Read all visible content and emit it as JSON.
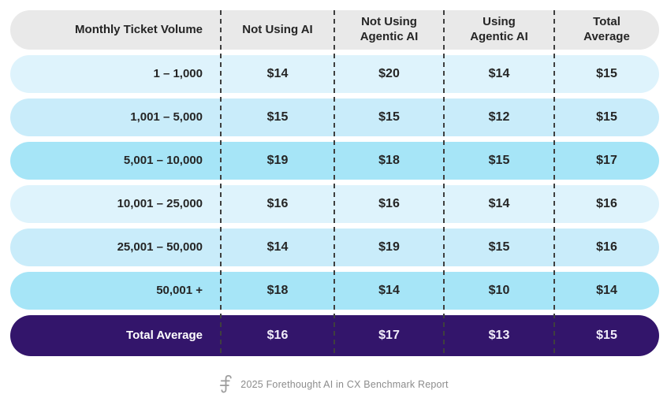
{
  "table": {
    "columns": [
      "Monthly Ticket Volume",
      "Not Using AI",
      "Not Using\nAgentic AI",
      "Using\nAgentic AI",
      "Total\nAverage"
    ],
    "rows": [
      {
        "label": "1 – 1,000",
        "tone": "pale",
        "values": [
          "$14",
          "$20",
          "$14",
          "$15"
        ]
      },
      {
        "label": "1,001 – 5,000",
        "tone": "mid",
        "values": [
          "$15",
          "$15",
          "$12",
          "$15"
        ]
      },
      {
        "label": "5,001 – 10,000",
        "tone": "dark",
        "values": [
          "$19",
          "$18",
          "$15",
          "$17"
        ]
      },
      {
        "label": "10,001 – 25,000",
        "tone": "pale",
        "values": [
          "$16",
          "$16",
          "$14",
          "$16"
        ]
      },
      {
        "label": "25,001 – 50,000",
        "tone": "mid",
        "values": [
          "$14",
          "$19",
          "$15",
          "$16"
        ]
      },
      {
        "label": "50,001 +",
        "tone": "dark",
        "values": [
          "$18",
          "$14",
          "$10",
          "$14"
        ]
      }
    ],
    "total_row": {
      "label": "Total Average",
      "values": [
        "$16",
        "$17",
        "$13",
        "$15"
      ]
    }
  },
  "chart_data": {
    "type": "table",
    "title": "",
    "columns": [
      "Monthly Ticket Volume",
      "Not Using AI",
      "Not Using Agentic AI",
      "Using Agentic AI",
      "Total Average"
    ],
    "currency": "$",
    "rows": [
      [
        "1 – 1,000",
        14,
        20,
        14,
        15
      ],
      [
        "1,001 – 5,000",
        15,
        15,
        12,
        15
      ],
      [
        "5,001 – 10,000",
        19,
        18,
        15,
        17
      ],
      [
        "10,001 – 25,000",
        16,
        16,
        14,
        16
      ],
      [
        "25,001 – 50,000",
        14,
        19,
        15,
        16
      ],
      [
        "50,001 +",
        18,
        14,
        10,
        14
      ]
    ],
    "total": [
      "Total Average",
      16,
      17,
      13,
      15
    ]
  },
  "footer": {
    "caption": "2025 Forethought AI in CX Benchmark Report",
    "logo_icon": "forethought-logo-icon"
  },
  "colors": {
    "header_bg": "#e9e9e9",
    "row_pale": "#def3fc",
    "row_mid": "#c9ecfa",
    "row_dark": "#a6e5f7",
    "total_bg": "#33156b",
    "dash": "#3f3f3f",
    "text_dark": "#252525",
    "total_text": "#f1edfa",
    "footer_text": "#8c8c8c",
    "logo_stroke": "#9d9d9d"
  }
}
